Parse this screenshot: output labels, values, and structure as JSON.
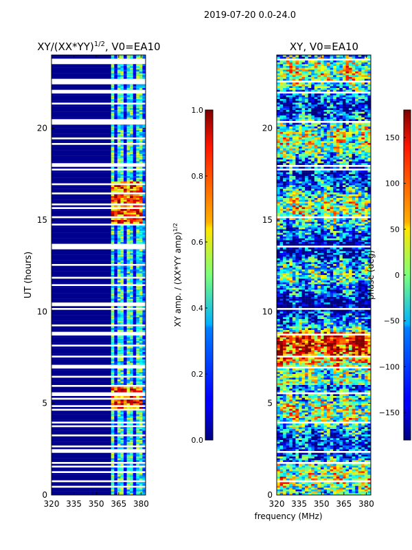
{
  "suptitle": "2019-07-20 0.0-24.0",
  "xlabel_shared": "frequency (MHz)",
  "chart_data": [
    {
      "type": "heatmap",
      "title": "XY/(XX*YY)^1/2, V0=EA10",
      "title_main": "XY/(XX*YY)",
      "title_sup": "1/2",
      "title_tail": ", V0=EA10",
      "ylabel": "UT (hours)",
      "xlim": [
        320,
        383
      ],
      "ylim": [
        0,
        24
      ],
      "xticks": [
        320,
        335,
        350,
        365,
        380
      ],
      "yticks": [
        0,
        5,
        10,
        15,
        20
      ],
      "colorbar": {
        "label": "XY amp. / (XX*YY amp)^1/2",
        "label_main": "XY amp. / (XX*YY amp)",
        "label_sup": "1/2",
        "range": [
          0.0,
          1.0
        ],
        "ticks": [
          "0.0",
          "0.2",
          "0.4",
          "0.6",
          "0.8",
          "1.0"
        ],
        "tick_values": [
          0.0,
          0.2,
          0.4,
          0.6,
          0.8,
          1.0
        ],
        "colormap": "jet"
      }
    },
    {
      "type": "heatmap",
      "title": "XY, V0=EA10",
      "ylabel": "",
      "xlim": [
        320,
        383
      ],
      "ylim": [
        0,
        24
      ],
      "xticks": [
        320,
        335,
        350,
        365,
        380
      ],
      "yticks": [
        0,
        5,
        10,
        15,
        20
      ],
      "colorbar": {
        "label": "phase (deg)",
        "range": [
          -180,
          180
        ],
        "ticks": [
          "−150",
          "−100",
          "−50",
          "0",
          "50",
          "100",
          "150"
        ],
        "tick_values": [
          -150,
          -100,
          -50,
          0,
          50,
          100,
          150
        ],
        "colormap": "jet"
      }
    }
  ]
}
